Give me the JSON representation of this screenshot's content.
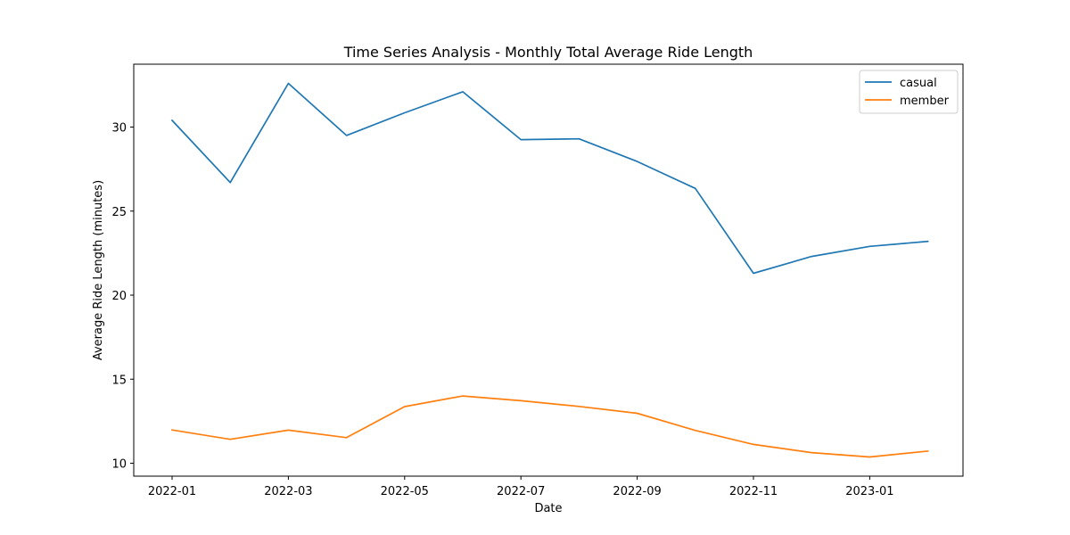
{
  "chart_data": {
    "type": "line",
    "title": "Time Series Analysis - Monthly Total Average Ride Length",
    "xlabel": "Date",
    "ylabel": "Average Ride Length (minutes)",
    "x": [
      "2022-01",
      "2022-02",
      "2022-03",
      "2022-04",
      "2022-05",
      "2022-06",
      "2022-07",
      "2022-08",
      "2022-09",
      "2022-10",
      "2022-11",
      "2022-12",
      "2023-01",
      "2023-02"
    ],
    "x_ticks": [
      "2022-01",
      "2022-03",
      "2022-05",
      "2022-07",
      "2022-09",
      "2022-11",
      "2023-01"
    ],
    "y_ticks": [
      10,
      15,
      20,
      25,
      30
    ],
    "series": [
      {
        "name": "casual",
        "color": "#1f77b4",
        "values": [
          30.4,
          26.7,
          32.6,
          29.5,
          30.85,
          32.1,
          29.25,
          29.3,
          27.95,
          26.35,
          21.3,
          22.3,
          22.9,
          23.2
        ]
      },
      {
        "name": "member",
        "color": "#ff7f0e",
        "values": [
          11.98,
          11.42,
          11.97,
          11.52,
          13.37,
          14.0,
          13.72,
          13.38,
          12.97,
          11.95,
          11.12,
          10.63,
          10.37,
          10.72
        ]
      }
    ],
    "grid": false,
    "legend": "top-right"
  }
}
